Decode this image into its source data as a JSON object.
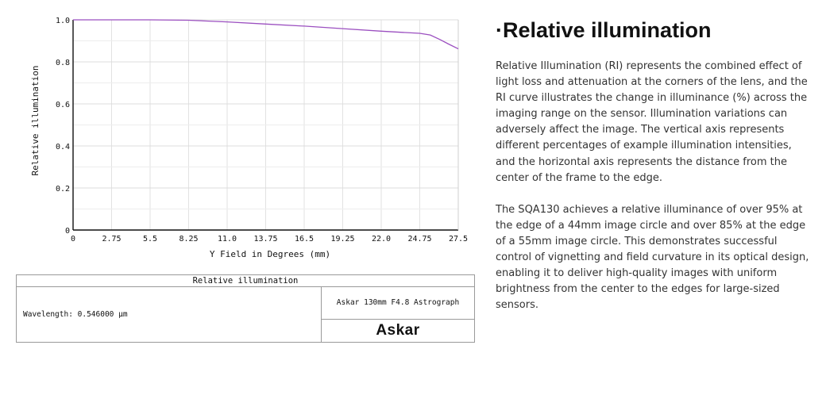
{
  "chart_data": {
    "type": "line",
    "title": "Relative illumination",
    "xlabel": "Y Field in Degrees (mm)",
    "ylabel": "Relative illumination",
    "xlim": [
      0,
      27.5
    ],
    "ylim": [
      0,
      1.0
    ],
    "x_ticks": [
      "0",
      "2.75",
      "5.5",
      "8.25",
      "11.0",
      "13.75",
      "16.5",
      "19.25",
      "22.0",
      "24.75",
      "27.5"
    ],
    "y_ticks": [
      "0",
      "0.2",
      "0.4",
      "0.6",
      "0.8",
      "1.0"
    ],
    "grid": true,
    "series": [
      {
        "color": "#9b4fc0",
        "x": [
          0,
          2.75,
          5.5,
          8.25,
          11.0,
          13.75,
          16.5,
          19.25,
          22.0,
          24.75,
          25.5,
          26.2,
          26.8,
          27.5
        ],
        "y": [
          1.0,
          1.0,
          1.0,
          0.998,
          0.99,
          0.98,
          0.97,
          0.958,
          0.946,
          0.936,
          0.928,
          0.906,
          0.885,
          0.862
        ]
      }
    ]
  },
  "info_table": {
    "title": "Relative illumination",
    "wavelength": "Wavelength: 0.546000 µm",
    "lens": "Askar 130mm F4.8 Astrograph",
    "brand": "Askar"
  },
  "text": {
    "heading": "·Relative illumination",
    "paragraph1": "Relative Illumination (RI) represents the combined effect of light loss and attenuation at the corners of the lens, and the RI curve illustrates the change in illuminance (%) across the imaging range on the sensor. Illumination variations can adversely affect the image. The vertical axis represents different percentages of example illumination intensities, and the horizontal axis represents the distance from the center of the frame to the edge.",
    "paragraph2": "The SQA130 achieves a relative illuminance of over 95% at the edge of a 44mm image circle and over 85% at the edge of a 55mm image circle. This demonstrates successful control of vignetting and field curvature in its optical design, enabling it to deliver high-quality images with uniform brightness from the center to the edges for large-sized sensors."
  }
}
